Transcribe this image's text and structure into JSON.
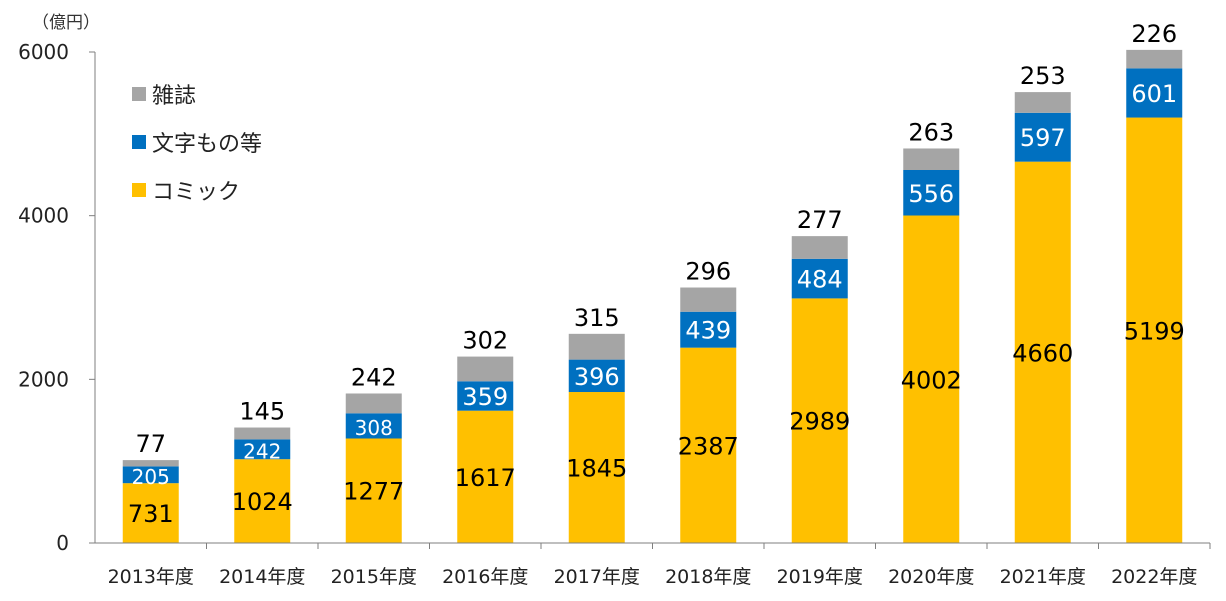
{
  "unit_label": "（億円）",
  "legend": [
    {
      "name": "雑誌",
      "color": "#A5A5A5"
    },
    {
      "name": "文字もの等",
      "color": "#0070C0"
    },
    {
      "name": "コミック",
      "color": "#FFC000"
    }
  ],
  "chart_data": {
    "type": "bar",
    "stacked": true,
    "title": "",
    "xlabel": "",
    "ylabel": "（億円）",
    "ylim": [
      0,
      6000
    ],
    "yticks": [
      0,
      2000,
      4000,
      6000
    ],
    "grid": false,
    "legend_position": "top-left",
    "categories": [
      "2013年度",
      "2014年度",
      "2015年度",
      "2016年度",
      "2017年度",
      "2018年度",
      "2019年度",
      "2020年度",
      "2021年度",
      "2022年度"
    ],
    "series": [
      {
        "name": "コミック",
        "color": "#FFC000",
        "label_color": "#000000",
        "values": [
          731,
          1024,
          1277,
          1617,
          1845,
          2387,
          2989,
          4002,
          4660,
          5199
        ]
      },
      {
        "name": "文字もの等",
        "color": "#0070C0",
        "label_color": "#FFFFFF",
        "values": [
          205,
          242,
          308,
          359,
          396,
          439,
          484,
          556,
          597,
          601
        ]
      },
      {
        "name": "雑誌",
        "color": "#A5A5A5",
        "label_color": "#000000",
        "values": [
          77,
          145,
          242,
          302,
          315,
          296,
          277,
          263,
          253,
          226
        ]
      }
    ]
  }
}
